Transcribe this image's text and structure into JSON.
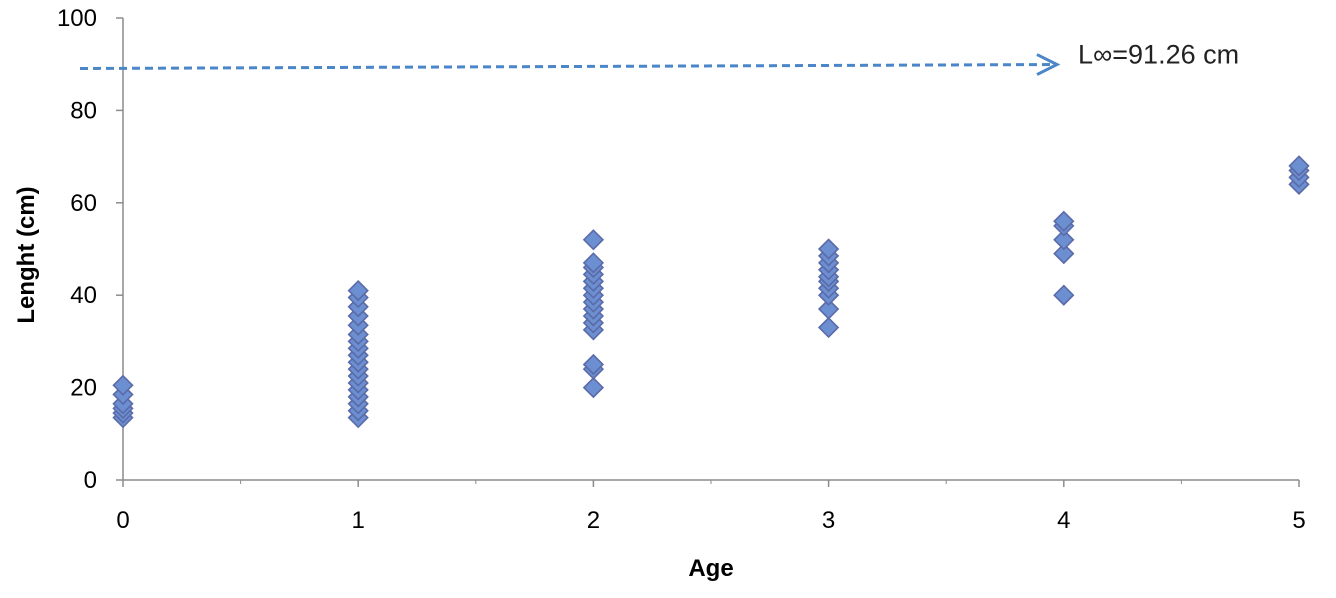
{
  "chart_data": {
    "type": "scatter",
    "title": "",
    "xlabel": "Age",
    "ylabel": "Lenght (cm)",
    "xlim": [
      0,
      5
    ],
    "ylim": [
      0,
      100
    ],
    "x_ticks": [
      "0",
      "1",
      "2",
      "3",
      "4",
      "5"
    ],
    "y_ticks": [
      "0",
      "20",
      "40",
      "60",
      "80",
      "100"
    ],
    "grid": false,
    "legend": "none",
    "marker": "diamond",
    "marker_color": "#6b8fd0",
    "annotation": {
      "text": "L∞=91.26 cm",
      "y": 89.5,
      "style": "dashed-arrow",
      "color": "#4a86c8"
    },
    "series": [
      {
        "points": [
          [
            0,
            13.5
          ],
          [
            0,
            14.5
          ],
          [
            0,
            15.5
          ],
          [
            0,
            16.5
          ],
          [
            0,
            18.5
          ],
          [
            0,
            20.5
          ],
          [
            1,
            13.5
          ],
          [
            1,
            15
          ],
          [
            1,
            16.5
          ],
          [
            1,
            18
          ],
          [
            1,
            19.5
          ],
          [
            1,
            21
          ],
          [
            1,
            22.5
          ],
          [
            1,
            24
          ],
          [
            1,
            25.5
          ],
          [
            1,
            27
          ],
          [
            1,
            28.5
          ],
          [
            1,
            30
          ],
          [
            1,
            31.5
          ],
          [
            1,
            33.5
          ],
          [
            1,
            35.5
          ],
          [
            1,
            37.5
          ],
          [
            1,
            39.5
          ],
          [
            1,
            41
          ],
          [
            2,
            20
          ],
          [
            2,
            24
          ],
          [
            2,
            25
          ],
          [
            2,
            32.5
          ],
          [
            2,
            34
          ],
          [
            2,
            35.5
          ],
          [
            2,
            37
          ],
          [
            2,
            38.5
          ],
          [
            2,
            40
          ],
          [
            2,
            41.5
          ],
          [
            2,
            43
          ],
          [
            2,
            44.5
          ],
          [
            2,
            46
          ],
          [
            2,
            47
          ],
          [
            2,
            52
          ],
          [
            3,
            33
          ],
          [
            3,
            37
          ],
          [
            3,
            40
          ],
          [
            3,
            41.5
          ],
          [
            3,
            43
          ],
          [
            3,
            44
          ],
          [
            3,
            45.5
          ],
          [
            3,
            47
          ],
          [
            3,
            48.5
          ],
          [
            3,
            50
          ],
          [
            4,
            40
          ],
          [
            4,
            49
          ],
          [
            4,
            52
          ],
          [
            4,
            55
          ],
          [
            4,
            56
          ],
          [
            5,
            64
          ],
          [
            5,
            65.5
          ],
          [
            5,
            67
          ],
          [
            5,
            68
          ]
        ]
      }
    ]
  }
}
